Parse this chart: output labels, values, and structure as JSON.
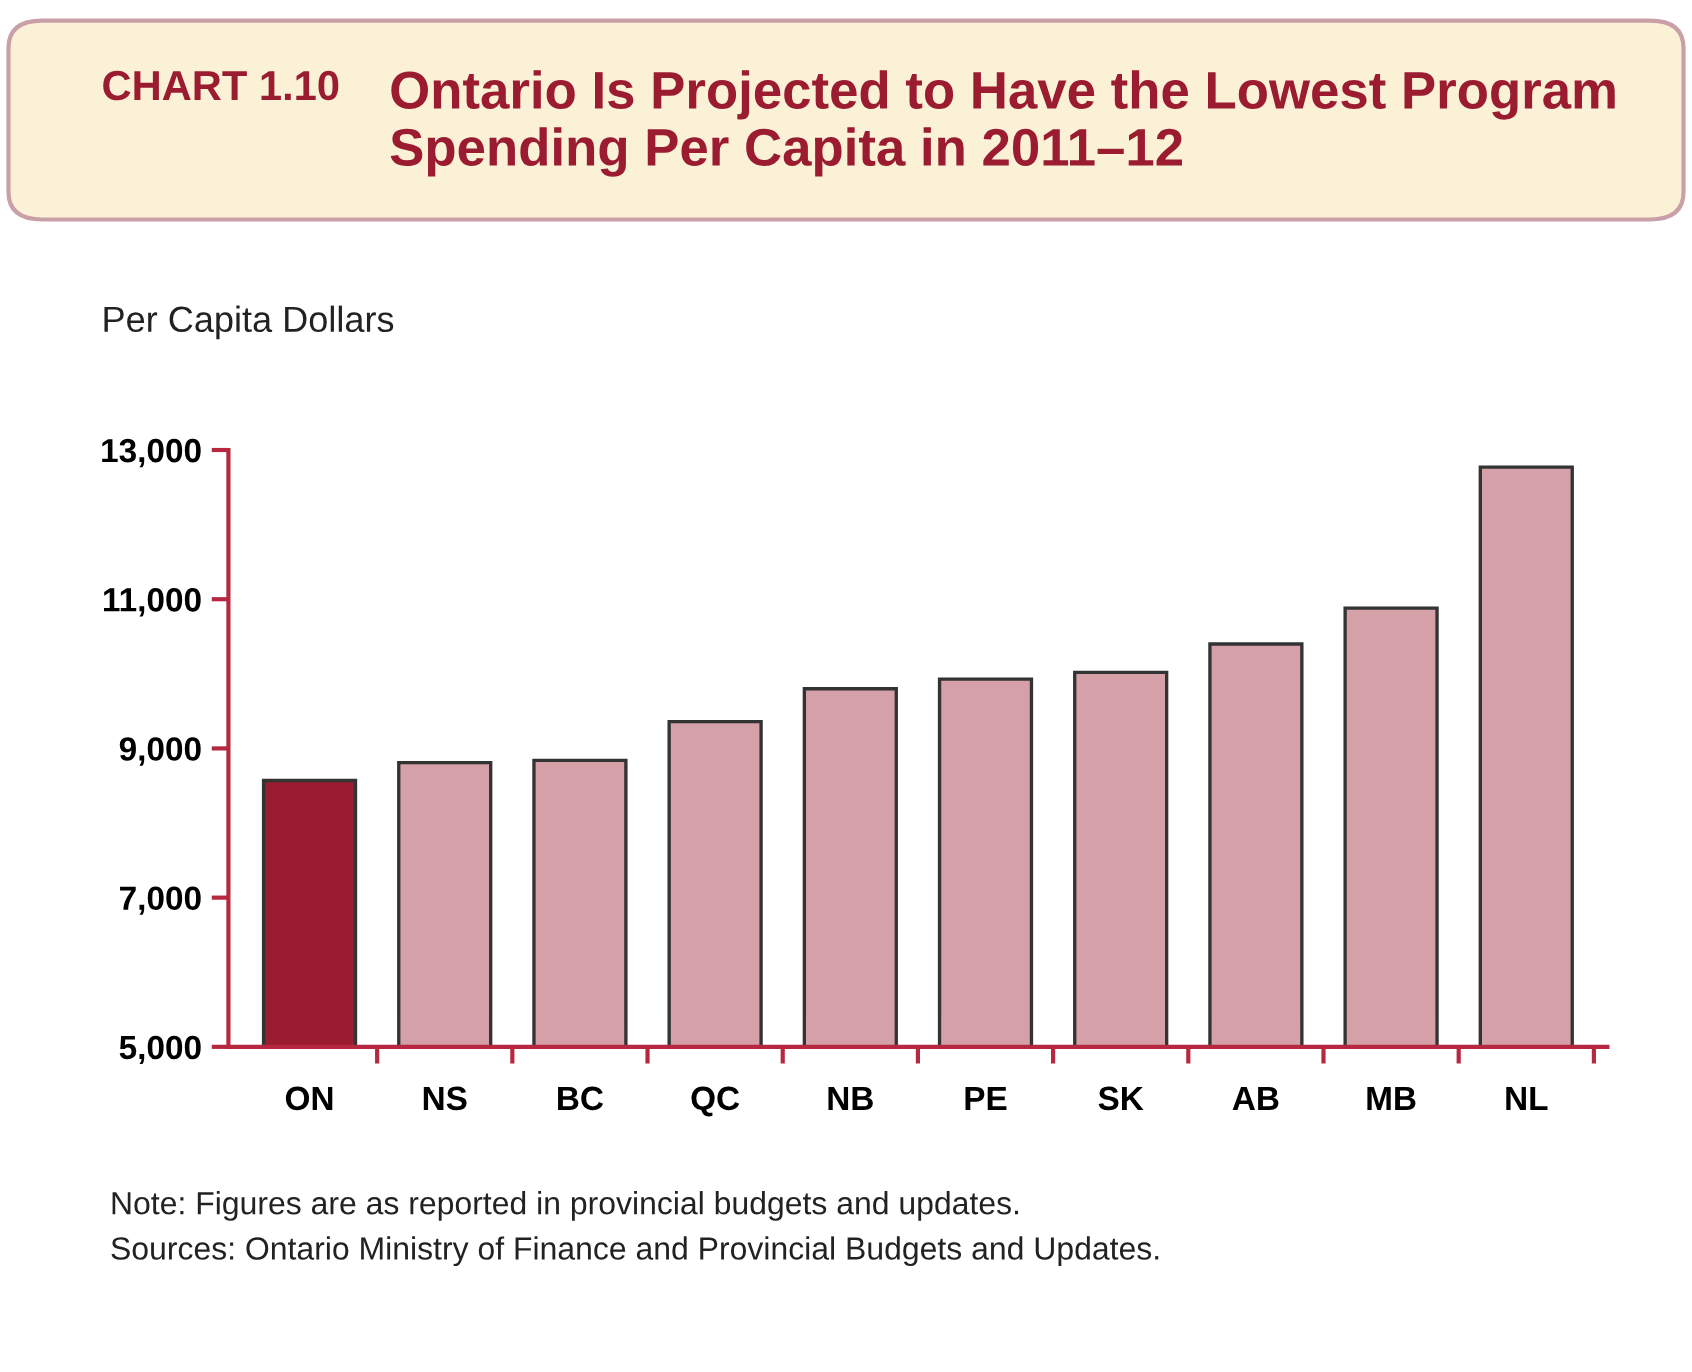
{
  "chart_data": {
    "type": "bar",
    "title": "CHART 1.10",
    "subtitle": "Ontario Is Projected to Have the Lowest Program Spending Per Capita in 2011–12",
    "ylabel": "Per Capita Dollars",
    "categories": [
      "ON",
      "NS",
      "BC",
      "QC",
      "NB",
      "PE",
      "SK",
      "AB",
      "MB",
      "NL"
    ],
    "values": [
      8570,
      8810,
      8840,
      9360,
      9800,
      9930,
      10020,
      10400,
      10880,
      12770
    ],
    "colors": [
      "#9b1b30",
      "#d5a0a8",
      "#d5a0a8",
      "#d5a0a8",
      "#d5a0a8",
      "#d5a0a8",
      "#d5a0a8",
      "#d5a0a8",
      "#d5a0a8",
      "#d5a0a8"
    ],
    "ylim": [
      5000,
      13000
    ],
    "yticks": [
      {
        "value": 5000,
        "label": "5,000"
      },
      {
        "value": 7000,
        "label": "7,000"
      },
      {
        "value": 9000,
        "label": "9,000"
      },
      {
        "value": 11000,
        "label": "11,000"
      },
      {
        "value": 13000,
        "label": "13,000"
      }
    ],
    "grid": false,
    "legend": false,
    "annotations": [
      "Note: Figures are as reported in provincial budgets and updates.",
      "Sources: Ontario Ministry of Finance and Provincial Budgets and Updates."
    ]
  }
}
